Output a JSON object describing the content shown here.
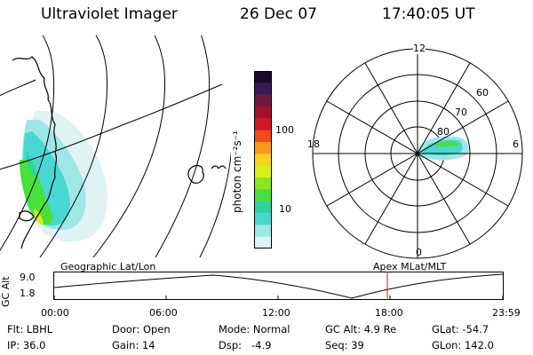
{
  "header": {
    "instrument": "Ultraviolet Imager",
    "date": "26 Dec 07",
    "time": "17:40:05 UT"
  },
  "colorbar": {
    "label": "photon cm⁻²s⁻¹",
    "ticks": [
      "100",
      "10"
    ],
    "colors": [
      "#1a0b2e",
      "#3a1a55",
      "#6e1a40",
      "#a3122a",
      "#d1182a",
      "#f24a1a",
      "#f89b16",
      "#f8d21c",
      "#d8ee1a",
      "#8ce81e",
      "#48e03a",
      "#2ed2a0",
      "#49d7d2",
      "#9ee7e6",
      "#dff3f3"
    ]
  },
  "polar": {
    "labels": {
      "top": "12",
      "left": "18",
      "right": "6",
      "bottom": "0"
    },
    "lat_labels": [
      "60",
      "70",
      "80"
    ]
  },
  "timeline": {
    "left_label": "Geographic Lat/Lon",
    "right_label": "Apex MLat/MLT",
    "yaxis_label": "GC Alt",
    "y_ticks": [
      "9.0",
      "1.8"
    ],
    "x_ticks": [
      "00:00",
      "06:00",
      "12:00",
      "18:00",
      "23:59"
    ],
    "marker_color": "#d02020"
  },
  "info": {
    "filter": "Flt: LBHL",
    "door": "Door: Open",
    "mode": "Mode: Normal",
    "gc_alt": "GC Alt: 4.9 Re",
    "glat": "GLat: -54.7",
    "ip": "IP: 36.0",
    "gain": "Gain: 14",
    "dsp": "Dsp:   -4.9",
    "seq": "Seq: 39",
    "glon": "GLon: 142.0"
  }
}
